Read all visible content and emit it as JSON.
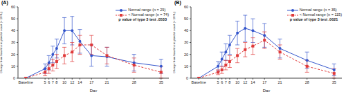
{
  "chart_data": [
    {
      "type": "line",
      "title": "(A)",
      "y_label": "Change from baseline in platelet count (× 10⁹/L)",
      "x_label": "Day",
      "x": [
        0,
        5,
        6,
        7,
        8,
        10,
        12,
        14,
        17,
        21,
        28,
        35
      ],
      "xlim": [
        -2,
        37
      ],
      "xticks": [
        {
          "value": 0,
          "label": "Baseline"
        },
        5,
        6,
        7,
        8,
        10,
        12,
        14,
        17,
        21,
        28,
        35
      ],
      "ylim": [
        0,
        60
      ],
      "yticks": [
        0,
        10,
        20,
        30,
        40,
        50,
        60
      ],
      "grid": false,
      "legend": "top-right",
      "annotations": [
        "p value of type 3 test .0533"
      ],
      "series": [
        {
          "name": "Normal range (n = 29)",
          "color": "#3355cc",
          "marker": "circle",
          "line_style": "solid",
          "values": [
            0,
            8,
            13,
            20,
            25,
            40,
            40,
            31,
            19,
            18,
            13,
            10
          ],
          "error": [
            0,
            4,
            6,
            7,
            8,
            11,
            12,
            10,
            9,
            8,
            7,
            6
          ]
        },
        {
          "name": "< Normal range (n = 74)",
          "color": "#e03a3a",
          "marker": "square",
          "line_style": "dashed",
          "values": [
            0,
            5,
            8,
            11,
            14,
            19,
            22,
            28,
            28,
            19,
            11,
            5
          ],
          "error": [
            0,
            3,
            4,
            5,
            6,
            7,
            8,
            8,
            8,
            7,
            6,
            5
          ]
        }
      ]
    },
    {
      "type": "line",
      "title": "(B)",
      "y_label": "Change from baseline in platelet count (× 10⁹/L)",
      "x_label": "Day",
      "x": [
        0,
        5,
        6,
        7,
        8,
        10,
        12,
        14,
        17,
        21,
        28,
        35
      ],
      "xlim": [
        -2,
        37
      ],
      "xticks": [
        {
          "value": 0,
          "label": "Baseline"
        },
        5,
        6,
        7,
        8,
        10,
        12,
        14,
        17,
        21,
        28,
        35
      ],
      "ylim": [
        0,
        60
      ],
      "yticks": [
        0,
        10,
        20,
        30,
        40,
        50,
        60
      ],
      "grid": false,
      "legend": "top-right",
      "annotations": [
        "p value of type 3 test .0021"
      ],
      "series": [
        {
          "name": "Normal range (n = 35)",
          "color": "#3355cc",
          "marker": "circle",
          "line_style": "solid",
          "values": [
            0,
            10,
            16,
            22,
            28,
            38,
            42,
            40,
            36,
            25,
            15,
            7
          ],
          "error": [
            0,
            4,
            6,
            7,
            8,
            10,
            11,
            10,
            10,
            8,
            7,
            5
          ]
        },
        {
          "name": "< Normal range (n = 115)",
          "color": "#e03a3a",
          "marker": "square",
          "line_style": "dashed",
          "values": [
            0,
            5,
            7,
            11,
            14,
            19,
            24,
            27,
            32,
            22,
            10,
            4
          ],
          "error": [
            0,
            2,
            3,
            4,
            5,
            6,
            6,
            7,
            7,
            6,
            5,
            4
          ]
        }
      ]
    }
  ]
}
